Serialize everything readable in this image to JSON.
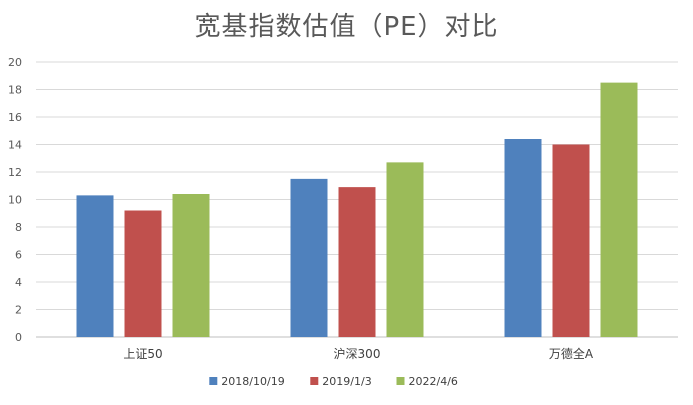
{
  "chart_data": {
    "type": "bar",
    "title": "宽基指数估值（PE）对比",
    "xlabel": "",
    "ylabel": "",
    "categories": [
      "上证50",
      "沪深300",
      "万德全A"
    ],
    "series": [
      {
        "name": "2018/10/19",
        "color": "#4F81BD",
        "values": [
          10.3,
          11.5,
          14.4
        ]
      },
      {
        "name": "2019/1/3",
        "color": "#C0504D",
        "values": [
          9.2,
          10.9,
          14.0
        ]
      },
      {
        "name": "2022/4/6",
        "color": "#9BBB59",
        "values": [
          10.4,
          12.7,
          18.5
        ]
      }
    ],
    "ylim": [
      0,
      20
    ],
    "yticks": [
      0,
      2,
      4,
      6,
      8,
      10,
      12,
      14,
      16,
      18,
      20
    ],
    "grid": true,
    "legend": "bottom"
  }
}
